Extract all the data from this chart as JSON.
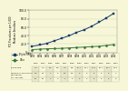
{
  "years": [
    1993,
    1994,
    1995,
    1996,
    1997,
    1998,
    1999,
    2000,
    2001,
    2002,
    2003,
    2004
  ],
  "elyria": [
    15,
    18,
    22,
    28,
    34,
    40,
    48,
    54,
    62,
    72,
    82,
    93
  ],
  "ohio": [
    7,
    8,
    9,
    9.5,
    10,
    11,
    12,
    13,
    14,
    15,
    17,
    19
  ],
  "elyria_color": "#1a3a6b",
  "ohio_color": "#3a7a3a",
  "elyria_label": "Elyria HRR",
  "ohio_label": "Ohio",
  "bg_color": "#f7f7d8",
  "ylim": [
    0,
    100
  ],
  "yticks": [
    0,
    20,
    40,
    60,
    80,
    100
  ],
  "ytick_labels": [
    "0",
    "20.0",
    "40.0",
    "60.0",
    "80.0",
    "100.0"
  ],
  "ylabel": "PCI Procedures per 1,000\nMedicare Enrollees",
  "table_rows": [
    [
      "Elyria HRR",
      "7.2",
      "7.4",
      "5.5",
      "8.0",
      "7.9",
      "8.5",
      "10.1",
      "10.7",
      "11.3",
      "12.1",
      "12.7",
      "13.5"
    ],
    [
      "Number of Procedures\n(thousands)",
      "5.3",
      "5.1",
      "4",
      "5",
      "5.5",
      "6.5",
      "6",
      "6",
      "5",
      "6",
      "6",
      "7"
    ],
    [
      "U.S. average",
      "19",
      "18",
      "4",
      "4",
      "4",
      "5",
      "5",
      "5",
      "5",
      "5",
      "5",
      "6"
    ]
  ],
  "marker_elyria": "s",
  "marker_ohio": "D",
  "elyria_ms": 1.8,
  "ohio_ms": 1.5,
  "line_width": 0.7
}
